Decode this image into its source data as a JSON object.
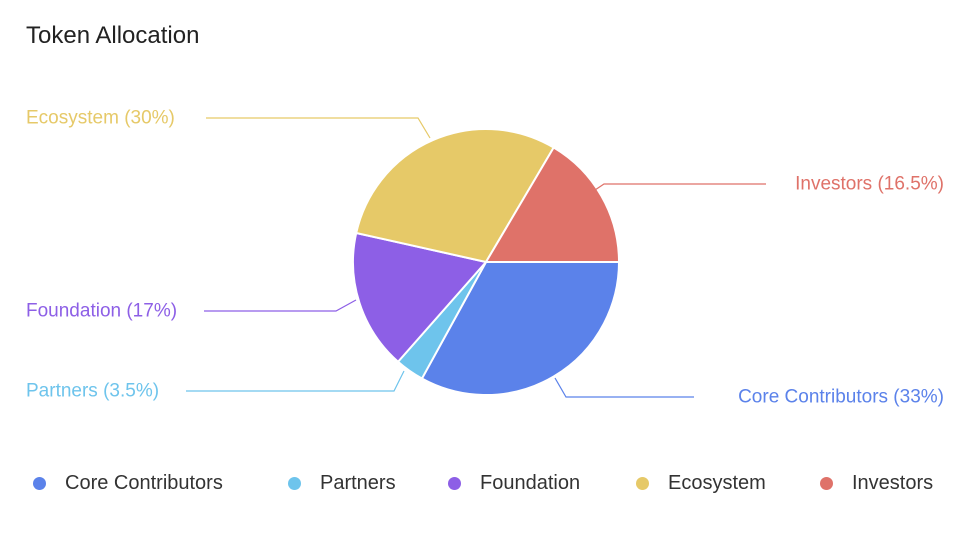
{
  "title": "Token Allocation",
  "chart_data": {
    "type": "pie",
    "title": "Token Allocation",
    "slices": [
      {
        "name": "Core Contributors",
        "value": 33,
        "label": "Core Contributors (33%)",
        "color": "#5b82ea"
      },
      {
        "name": "Partners",
        "value": 3.5,
        "label": "Partners (3.5%)",
        "color": "#6ec4ec"
      },
      {
        "name": "Foundation",
        "value": 17,
        "label": "Foundation (17%)",
        "color": "#8d5fe6"
      },
      {
        "name": "Ecosystem",
        "value": 30,
        "label": "Ecosystem (30%)",
        "color": "#e6c968"
      },
      {
        "name": "Investors",
        "value": 16.5,
        "label": "Investors (16.5%)",
        "color": "#df7269"
      }
    ],
    "start": "3 o'clock",
    "direction": "clockwise",
    "legend_position": "bottom"
  },
  "legend": {
    "items": [
      {
        "label": "Core Contributors",
        "color": "#5b82ea"
      },
      {
        "label": "Partners",
        "color": "#6ec4ec"
      },
      {
        "label": "Foundation",
        "color": "#8d5fe6"
      },
      {
        "label": "Ecosystem",
        "color": "#e6c968"
      },
      {
        "label": "Investors",
        "color": "#df7269"
      }
    ]
  }
}
